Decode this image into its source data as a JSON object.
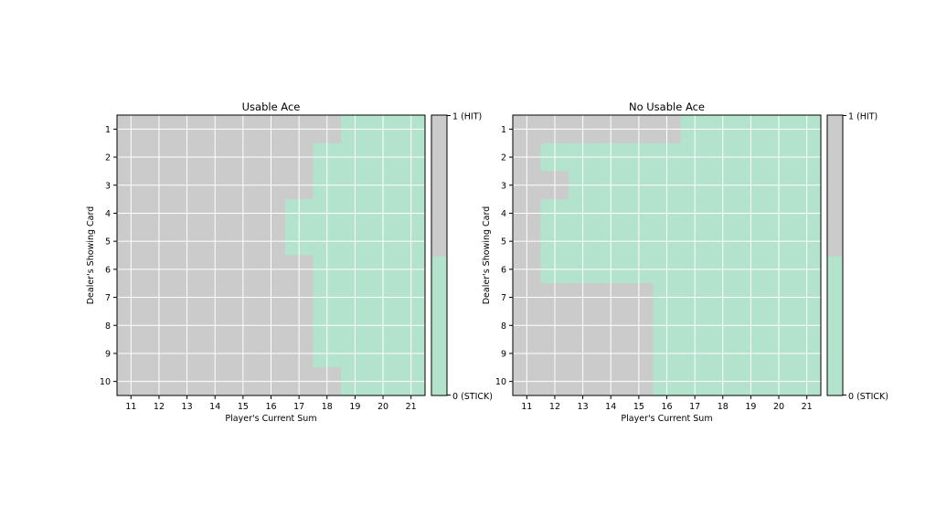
{
  "chart_data": [
    {
      "type": "heatmap",
      "title": "Usable Ace",
      "xlabel": "Player's Current Sum",
      "ylabel": "Dealer's Showing Card",
      "x": [
        11,
        12,
        13,
        14,
        15,
        16,
        17,
        18,
        19,
        20,
        21
      ],
      "y": [
        1,
        2,
        3,
        4,
        5,
        6,
        7,
        8,
        9,
        10
      ],
      "stick_from_sum_by_dealer_card": [
        19,
        18,
        18,
        17,
        17,
        18,
        18,
        18,
        18,
        19
      ],
      "legend": {
        "top_label": "1 (HIT)",
        "bottom_label": "0 (STICK)"
      },
      "grid": true
    },
    {
      "type": "heatmap",
      "title": "No Usable Ace",
      "xlabel": "Player's Current Sum",
      "ylabel": "Dealer's Showing Card",
      "x": [
        11,
        12,
        13,
        14,
        15,
        16,
        17,
        18,
        19,
        20,
        21
      ],
      "y": [
        1,
        2,
        3,
        4,
        5,
        6,
        7,
        8,
        9,
        10
      ],
      "stick_from_sum_by_dealer_card": [
        17,
        12,
        13,
        12,
        12,
        12,
        16,
        16,
        16,
        16
      ],
      "legend": {
        "top_label": "1 (HIT)",
        "bottom_label": "0 (STICK)"
      },
      "grid": true
    }
  ],
  "colors": {
    "hit": "#cbcbcb",
    "stick": "#b3e2cd",
    "grid": "#ffffff"
  }
}
